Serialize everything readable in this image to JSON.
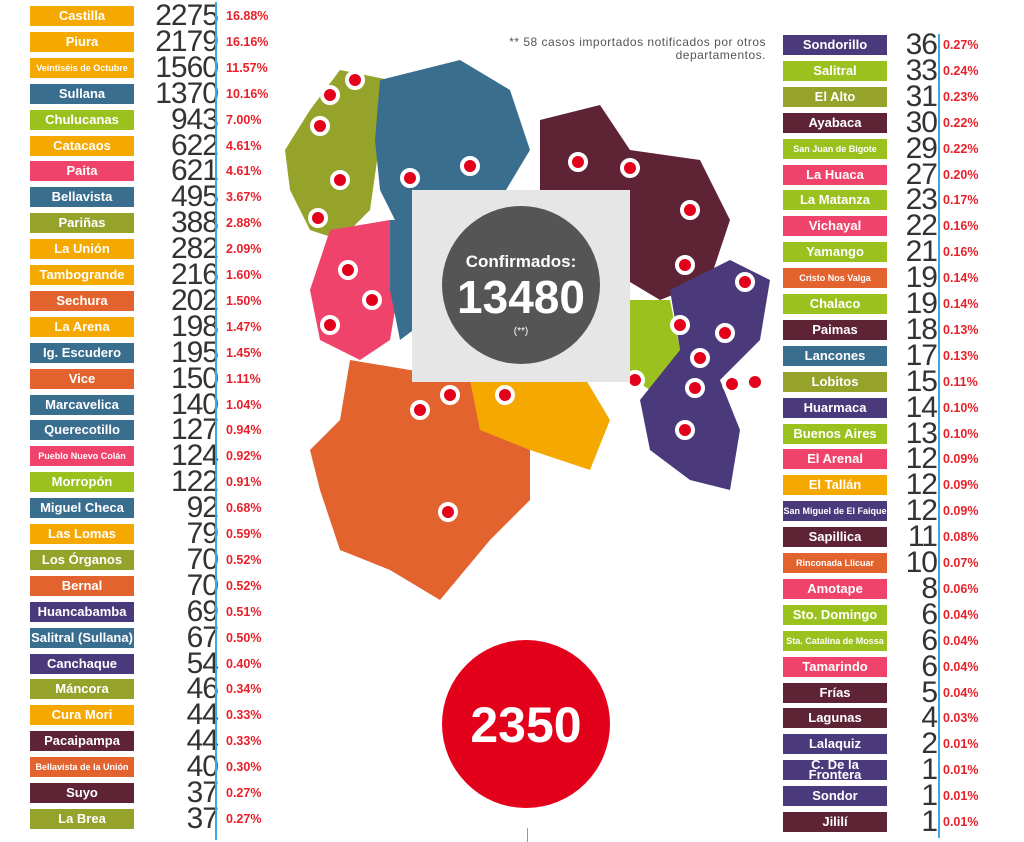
{
  "note": "** 58 casos importados notificados por otros departamentos.",
  "summary": {
    "label": "Confirmados:",
    "value": "13480",
    "note": "(**)"
  },
  "total": "2350",
  "left_list": [
    {
      "name": "Castilla",
      "count": "2275",
      "pct": "16.88%",
      "color": "#f5a800",
      "small": false
    },
    {
      "name": "Piura",
      "count": "2179",
      "pct": "16.16%",
      "color": "#f5a800",
      "small": false
    },
    {
      "name": "Veintiséis de Octubre",
      "count": "1560",
      "pct": "11.57%",
      "color": "#f5a800",
      "small": true
    },
    {
      "name": "Sullana",
      "count": "1370",
      "pct": "10.16%",
      "color": "#3a6e8f",
      "small": false
    },
    {
      "name": "Chulucanas",
      "count": "943",
      "pct": "7.00%",
      "color": "#9ac11d",
      "small": false
    },
    {
      "name": "Catacaos",
      "count": "622",
      "pct": "4.61%",
      "color": "#f5a800",
      "small": false
    },
    {
      "name": "Paita",
      "count": "621",
      "pct": "4.61%",
      "color": "#f0436b",
      "small": false
    },
    {
      "name": "Bellavista",
      "count": "495",
      "pct": "3.67%",
      "color": "#3a6e8f",
      "small": false
    },
    {
      "name": "Pariñas",
      "count": "388",
      "pct": "2.88%",
      "color": "#95a32a",
      "small": false
    },
    {
      "name": "La Unión",
      "count": "282",
      "pct": "2.09%",
      "color": "#f5a800",
      "small": false
    },
    {
      "name": "Tambogrande",
      "count": "216",
      "pct": "1.60%",
      "color": "#f5a800",
      "small": false
    },
    {
      "name": "Sechura",
      "count": "202",
      "pct": "1.50%",
      "color": "#e2632e",
      "small": false
    },
    {
      "name": "La Arena",
      "count": "198",
      "pct": "1.47%",
      "color": "#f5a800",
      "small": false
    },
    {
      "name": "Ig. Escudero",
      "count": "195",
      "pct": "1.45%",
      "color": "#3a6e8f",
      "small": false
    },
    {
      "name": "Vice",
      "count": "150",
      "pct": "1.11%",
      "color": "#e2632e",
      "small": false
    },
    {
      "name": "Marcavelica",
      "count": "140",
      "pct": "1.04%",
      "color": "#3a6e8f",
      "small": false
    },
    {
      "name": "Querecotillo",
      "count": "127",
      "pct": "0.94%",
      "color": "#3a6e8f",
      "small": false
    },
    {
      "name": "Pueblo Nuevo Colán",
      "count": "124",
      "pct": "0.92%",
      "color": "#f0436b",
      "small": true
    },
    {
      "name": "Morropón",
      "count": "122",
      "pct": "0.91%",
      "color": "#9ac11d",
      "small": false
    },
    {
      "name": "Miguel Checa",
      "count": "92",
      "pct": "0.68%",
      "color": "#3a6e8f",
      "small": false
    },
    {
      "name": "Las Lomas",
      "count": "79",
      "pct": "0.59%",
      "color": "#f5a800",
      "small": false
    },
    {
      "name": "Los Órganos",
      "count": "70",
      "pct": "0.52%",
      "color": "#95a32a",
      "small": false
    },
    {
      "name": "Bernal",
      "count": "70",
      "pct": "0.52%",
      "color": "#e2632e",
      "small": false
    },
    {
      "name": "Huancabamba",
      "count": "69",
      "pct": "0.51%",
      "color": "#4a3a7c",
      "small": false
    },
    {
      "name": "Salitral (Sullana)",
      "count": "67",
      "pct": "0.50%",
      "color": "#3a6e8f",
      "small": false
    },
    {
      "name": "Canchaque",
      "count": "54",
      "pct": "0.40%",
      "color": "#4a3a7c",
      "small": false
    },
    {
      "name": "Máncora",
      "count": "46",
      "pct": "0.34%",
      "color": "#95a32a",
      "small": false
    },
    {
      "name": "Cura Mori",
      "count": "44",
      "pct": "0.33%",
      "color": "#f5a800",
      "small": false
    },
    {
      "name": "Pacaipampa",
      "count": "44",
      "pct": "0.33%",
      "color": "#5e2334",
      "small": false
    },
    {
      "name": "Bellavista de la Unión",
      "count": "40",
      "pct": "0.30%",
      "color": "#e2632e",
      "small": true
    },
    {
      "name": "Suyo",
      "count": "37",
      "pct": "0.27%",
      "color": "#5e2334",
      "small": false
    },
    {
      "name": "La Brea",
      "count": "37",
      "pct": "0.27%",
      "color": "#95a32a",
      "small": false
    }
  ],
  "right_list": [
    {
      "name": "Sondorillo",
      "count": "36",
      "pct": "0.27%",
      "color": "#4a3a7c",
      "small": false
    },
    {
      "name": "Salitral",
      "count": "33",
      "pct": "0.24%",
      "color": "#9ac11d",
      "small": false
    },
    {
      "name": "El Alto",
      "count": "31",
      "pct": "0.23%",
      "color": "#95a32a",
      "small": false
    },
    {
      "name": "Ayabaca",
      "count": "30",
      "pct": "0.22%",
      "color": "#5e2334",
      "small": false
    },
    {
      "name": "San Juan de Bigote",
      "count": "29",
      "pct": "0.22%",
      "color": "#9ac11d",
      "small": true
    },
    {
      "name": "La Huaca",
      "count": "27",
      "pct": "0.20%",
      "color": "#f0436b",
      "small": false
    },
    {
      "name": "La Matanza",
      "count": "23",
      "pct": "0.17%",
      "color": "#9ac11d",
      "small": false
    },
    {
      "name": "Vichayal",
      "count": "22",
      "pct": "0.16%",
      "color": "#f0436b",
      "small": false
    },
    {
      "name": "Yamango",
      "count": "21",
      "pct": "0.16%",
      "color": "#9ac11d",
      "small": false
    },
    {
      "name": "Cristo Nos Valga",
      "count": "19",
      "pct": "0.14%",
      "color": "#e2632e",
      "small": true
    },
    {
      "name": "Chalaco",
      "count": "19",
      "pct": "0.14%",
      "color": "#9ac11d",
      "small": false
    },
    {
      "name": "Paimas",
      "count": "18",
      "pct": "0.13%",
      "color": "#5e2334",
      "small": false
    },
    {
      "name": "Lancones",
      "count": "17",
      "pct": "0.13%",
      "color": "#3a6e8f",
      "small": false
    },
    {
      "name": "Lobitos",
      "count": "15",
      "pct": "0.11%",
      "color": "#95a32a",
      "small": false
    },
    {
      "name": "Huarmaca",
      "count": "14",
      "pct": "0.10%",
      "color": "#4a3a7c",
      "small": false
    },
    {
      "name": "Buenos Aires",
      "count": "13",
      "pct": "0.10%",
      "color": "#9ac11d",
      "small": false
    },
    {
      "name": "El Arenal",
      "count": "12",
      "pct": "0.09%",
      "color": "#f0436b",
      "small": false
    },
    {
      "name": "El Tallán",
      "count": "12",
      "pct": "0.09%",
      "color": "#f5a800",
      "small": false
    },
    {
      "name": "San Miguel de El Faique",
      "count": "12",
      "pct": "0.09%",
      "color": "#4a3a7c",
      "small": true
    },
    {
      "name": "Sapillica",
      "count": "11",
      "pct": "0.08%",
      "color": "#5e2334",
      "small": false
    },
    {
      "name": "Rinconada Llicuar",
      "count": "10",
      "pct": "0.07%",
      "color": "#e2632e",
      "small": true
    },
    {
      "name": "Amotape",
      "count": "8",
      "pct": "0.06%",
      "color": "#f0436b",
      "small": false
    },
    {
      "name": "Sto. Domingo",
      "count": "6",
      "pct": "0.04%",
      "color": "#9ac11d",
      "small": false
    },
    {
      "name": "Sta. Catalina de Mossa",
      "count": "6",
      "pct": "0.04%",
      "color": "#9ac11d",
      "small": true
    },
    {
      "name": "Tamarindo",
      "count": "6",
      "pct": "0.04%",
      "color": "#f0436b",
      "small": false
    },
    {
      "name": "Frías",
      "count": "5",
      "pct": "0.04%",
      "color": "#5e2334",
      "small": false
    },
    {
      "name": "Lagunas",
      "count": "4",
      "pct": "0.03%",
      "color": "#5e2334",
      "small": false
    },
    {
      "name": "Lalaquiz",
      "count": "2",
      "pct": "0.01%",
      "color": "#4a3a7c",
      "small": false
    },
    {
      "name": "C. De la Frontera",
      "count": "1",
      "pct": "0.01%",
      "color": "#4a3a7c",
      "small": false
    },
    {
      "name": "Sondor",
      "count": "1",
      "pct": "0.01%",
      "color": "#4a3a7c",
      "small": false
    },
    {
      "name": "Jililí",
      "count": "1",
      "pct": "0.01%",
      "color": "#5e2334",
      "small": false
    }
  ]
}
